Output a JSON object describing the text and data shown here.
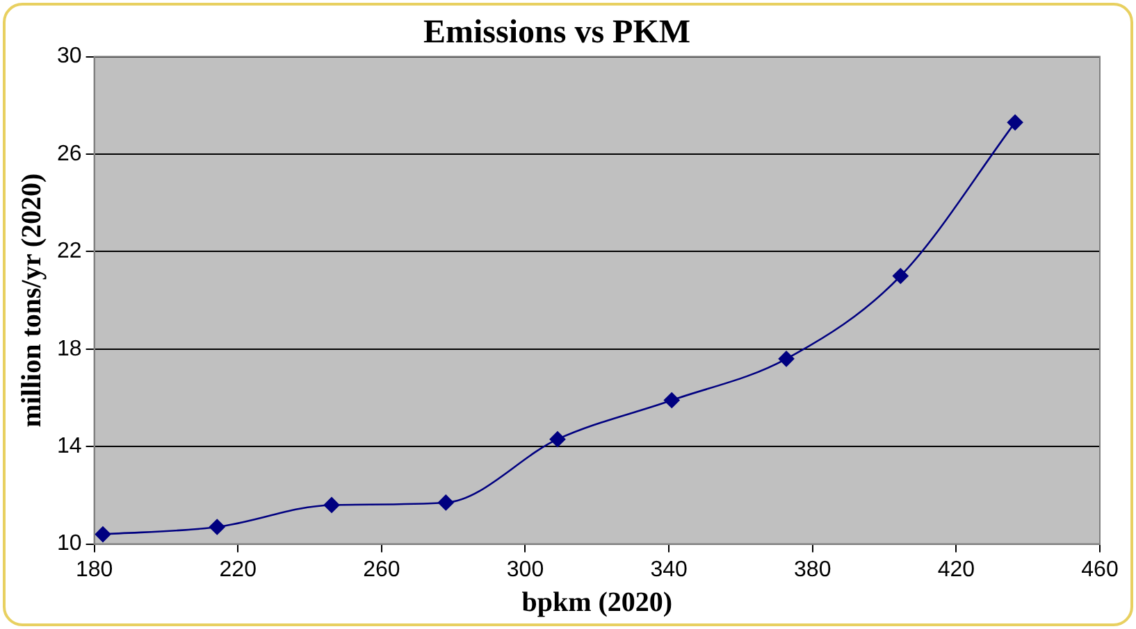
{
  "chart_data": {
    "type": "line",
    "title": "Emissions vs PKM",
    "xlabel": "bpkm (2020)",
    "ylabel": "million tons/yr (2020)",
    "x": [
      182.4,
      214.2,
      246.1,
      277.9,
      309,
      340.8,
      372.7,
      404.5,
      436.4
    ],
    "series": [
      {
        "color": "#000080",
        "values": [
          10.4,
          10.7,
          11.6,
          11.7,
          14.3,
          15.9,
          17.6,
          21.0,
          27.3
        ]
      }
    ],
    "xlim": [
      180,
      460
    ],
    "xticks": [
      180,
      220,
      260,
      300,
      340,
      380,
      420,
      460
    ],
    "ylim": [
      10,
      30
    ],
    "yticks": [
      10,
      14,
      18,
      22,
      26,
      30
    ],
    "grid": "y",
    "legend": false,
    "marker": "diamond",
    "line_style": "solid"
  }
}
